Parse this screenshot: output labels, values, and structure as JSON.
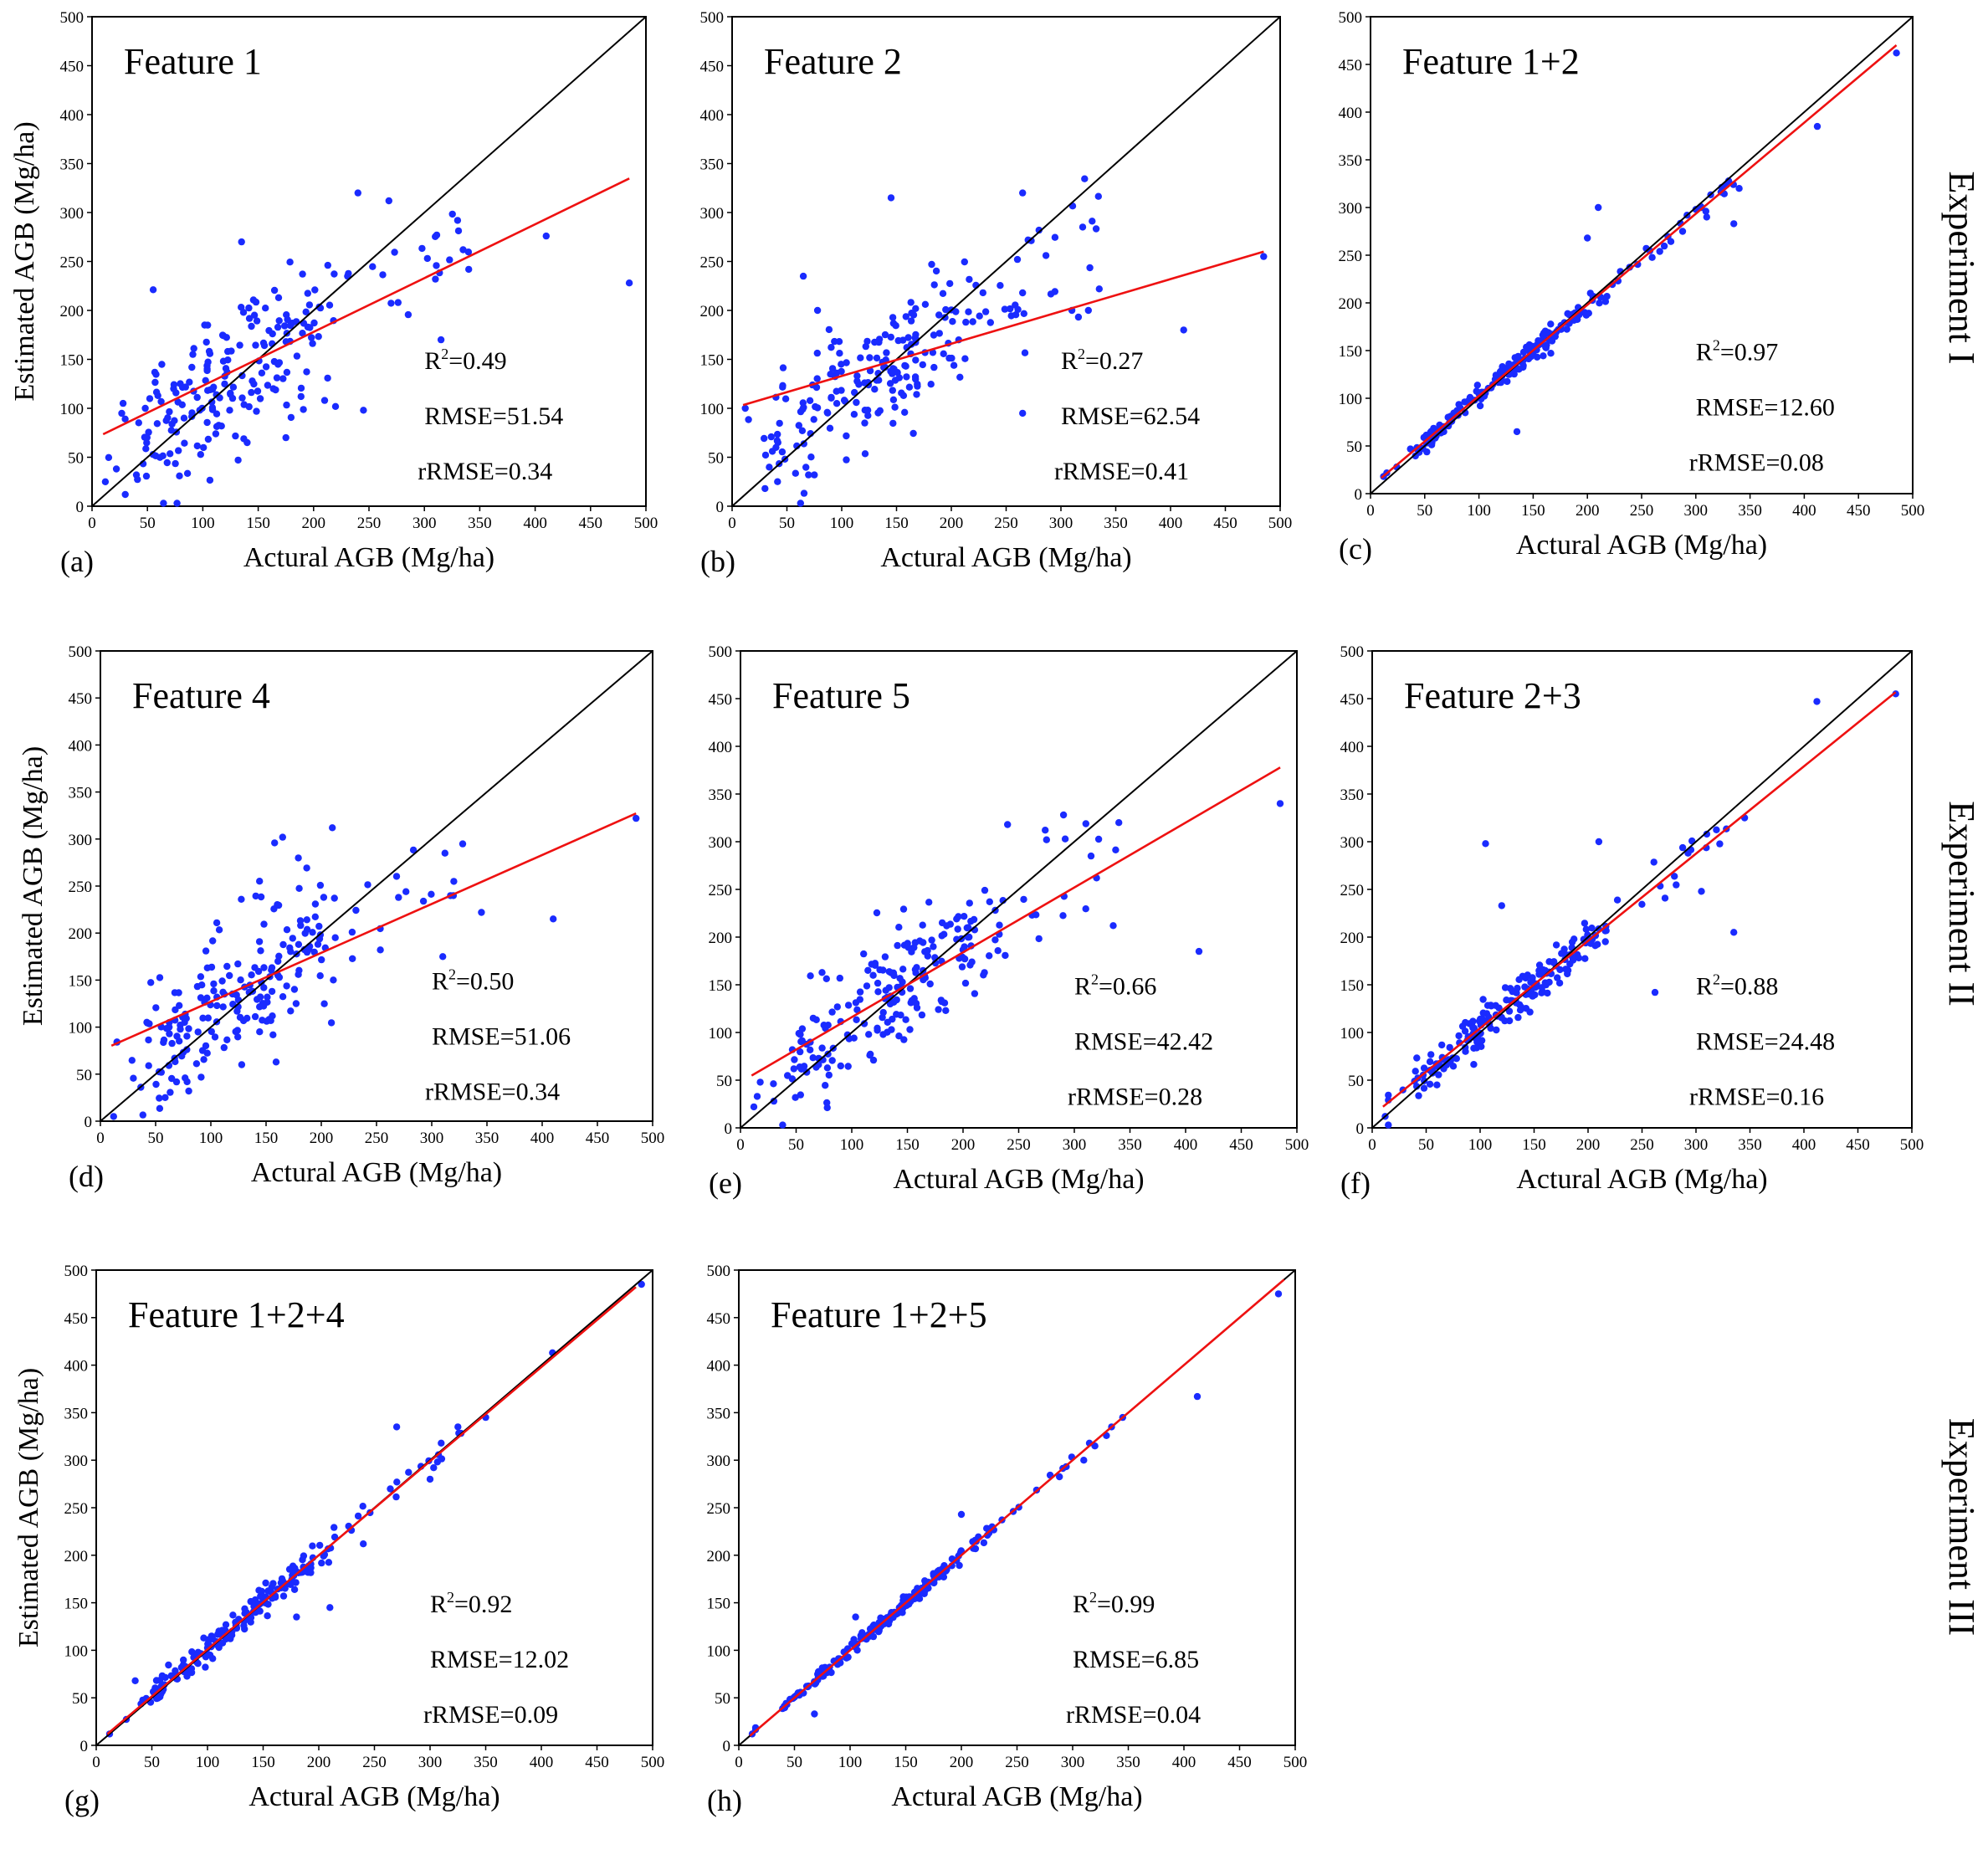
{
  "experiments": [
    "Experiment I",
    "Experiment II",
    "Experiment III"
  ],
  "colors": {
    "points": "#1a2bff",
    "fit_line": "#ee1111",
    "one_to_one_line": "#000000"
  },
  "axis_ticks": [
    "0",
    "50",
    "100",
    "150",
    "200",
    "250",
    "300",
    "350",
    "400",
    "450",
    "500"
  ],
  "chart_data": [
    {
      "id": "a",
      "letter": "(a)",
      "type": "scatter",
      "title": "Feature 1",
      "xlabel": "Actural AGB (Mg/ha)",
      "ylabel": "Estimated AGB (Mg/ha)",
      "xlim": [
        0,
        500
      ],
      "ylim": [
        0,
        500
      ],
      "fit": {
        "slope": 0.55,
        "intercept": 68,
        "x_range": [
          10,
          485
        ]
      },
      "r2_label": "R",
      "r2_value": "=0.49",
      "rmse": "RMSE=51.54",
      "rrmse": "rRMSE=0.34",
      "scatter_sd": 40,
      "n_points": 210,
      "seed": 11,
      "points": [
        [
          12,
          25
        ],
        [
          22,
          38
        ],
        [
          28,
          105
        ],
        [
          30,
          12
        ],
        [
          40,
          32
        ],
        [
          48,
          100
        ],
        [
          240,
          320
        ],
        [
          268,
          312
        ],
        [
          410,
          276
        ],
        [
          485,
          228
        ],
        [
          245,
          98
        ],
        [
          310,
          232
        ],
        [
          315,
          170
        ],
        [
          335,
          262
        ],
        [
          340,
          242
        ],
        [
          135,
          270
        ],
        [
          210,
          108
        ],
        [
          175,
          70
        ],
        [
          140,
          65
        ]
      ]
    },
    {
      "id": "b",
      "letter": "(b)",
      "type": "scatter",
      "title": "Feature 2",
      "xlabel": "Actural AGB (Mg/ha)",
      "ylabel": "Estimated AGB (Mg/ha)",
      "xlim": [
        0,
        500
      ],
      "ylim": [
        0,
        500
      ],
      "fit": {
        "slope": 0.33,
        "intercept": 100,
        "x_range": [
          10,
          485
        ]
      },
      "r2_label": "R",
      "r2_value": "=0.27",
      "rmse": "RMSE=62.54",
      "rrmse": "rRMSE=0.41",
      "scatter_sd": 38,
      "n_points": 210,
      "seed": 23,
      "points": [
        [
          12,
          100
        ],
        [
          30,
          18
        ],
        [
          65,
          235
        ],
        [
          145,
          315
        ],
        [
          265,
          320
        ],
        [
          270,
          272
        ],
        [
          280,
          282
        ],
        [
          265,
          95
        ],
        [
          310,
          200
        ],
        [
          325,
          200
        ],
        [
          335,
          222
        ],
        [
          412,
          180
        ],
        [
          485,
          255
        ],
        [
          75,
          32
        ],
        [
          40,
          60
        ]
      ]
    },
    {
      "id": "c",
      "letter": "(c)",
      "type": "scatter",
      "title": "Feature 1+2",
      "xlabel": "Actural AGB (Mg/ha)",
      "ylabel": "Estimated AGB (Mg/ha)",
      "xlim": [
        0,
        500
      ],
      "ylim": [
        0,
        500
      ],
      "fit": {
        "slope": 0.955,
        "intercept": 7,
        "x_range": [
          10,
          485
        ]
      },
      "r2_label": "R",
      "r2_value": "=0.97",
      "rmse": "RMSE=12.60",
      "rrmse": "rRMSE=0.08",
      "scatter_sd": 6,
      "n_points": 200,
      "seed": 37,
      "points": [
        [
          12,
          18
        ],
        [
          135,
          65
        ],
        [
          200,
          268
        ],
        [
          210,
          300
        ],
        [
          305,
          300
        ],
        [
          310,
          290
        ],
        [
          335,
          283
        ],
        [
          340,
          320
        ],
        [
          412,
          385
        ],
        [
          485,
          462
        ]
      ]
    },
    {
      "id": "d",
      "letter": "(d)",
      "type": "scatter",
      "title": "Feature 4",
      "xlabel": "Actural AGB (Mg/ha)",
      "ylabel": "Estimated AGB (Mg/ha)",
      "xlim": [
        0,
        500
      ],
      "ylim": [
        0,
        500
      ],
      "fit": {
        "slope": 0.52,
        "intercept": 75,
        "x_range": [
          10,
          485
        ]
      },
      "r2_label": "R",
      "r2_value": "=0.50",
      "rmse": "RMSE=51.06",
      "rrmse": "rRMSE=0.34",
      "scatter_sd": 38,
      "n_points": 210,
      "seed": 49,
      "points": [
        [
          12,
          5
        ],
        [
          165,
          302
        ],
        [
          210,
          312
        ],
        [
          485,
          322
        ],
        [
          410,
          215
        ],
        [
          312,
          285
        ],
        [
          320,
          255
        ],
        [
          345,
          222
        ],
        [
          310,
          175
        ],
        [
          80,
          32
        ]
      ]
    },
    {
      "id": "e",
      "letter": "(e)",
      "type": "scatter",
      "title": "Feature 5",
      "xlabel": "Actural AGB (Mg/ha)",
      "ylabel": "Estimated AGB (Mg/ha)",
      "xlim": [
        0,
        500
      ],
      "ylim": [
        0,
        500
      ],
      "fit": {
        "slope": 0.68,
        "intercept": 48,
        "x_range": [
          10,
          485
        ]
      },
      "r2_label": "R",
      "r2_value": "=0.66",
      "rmse": "RMSE=42.42",
      "rrmse": "rRMSE=0.28",
      "scatter_sd": 32,
      "n_points": 210,
      "seed": 61,
      "points": [
        [
          12,
          22
        ],
        [
          240,
          318
        ],
        [
          275,
          302
        ],
        [
          340,
          320
        ],
        [
          485,
          340
        ],
        [
          412,
          185
        ],
        [
          315,
          285
        ],
        [
          320,
          262
        ],
        [
          335,
          212
        ],
        [
          30,
          28
        ]
      ]
    },
    {
      "id": "f",
      "letter": "(f)",
      "type": "scatter",
      "title": "Feature 2+3",
      "xlabel": "Actural AGB (Mg/ha)",
      "ylabel": "Estimated AGB (Mg/ha)",
      "xlim": [
        0,
        500
      ],
      "ylim": [
        0,
        500
      ],
      "fit": {
        "slope": 0.915,
        "intercept": 13,
        "x_range": [
          10,
          485
        ]
      },
      "r2_label": "R",
      "r2_value": "=0.88",
      "rmse": "RMSE=24.48",
      "rrmse": "rRMSE=0.16",
      "scatter_sd": 11,
      "n_points": 200,
      "seed": 73,
      "points": [
        [
          12,
          12
        ],
        [
          105,
          298
        ],
        [
          120,
          233
        ],
        [
          210,
          300
        ],
        [
          262,
          142
        ],
        [
          335,
          205
        ],
        [
          305,
          248
        ],
        [
          310,
          308
        ],
        [
          345,
          325
        ],
        [
          412,
          447
        ],
        [
          485,
          455
        ],
        [
          60,
          45
        ]
      ]
    },
    {
      "id": "g",
      "letter": "(g)",
      "type": "scatter",
      "title": "Feature 1+2+4",
      "xlabel": "Actural AGB (Mg/ha)",
      "ylabel": "Estimated AGB (Mg/ha)",
      "xlim": [
        0,
        500
      ],
      "ylim": [
        0,
        500
      ],
      "fit": {
        "slope": 0.99,
        "intercept": 2,
        "x_range": [
          10,
          485
        ]
      },
      "r2_label": "R",
      "r2_value": "=0.92",
      "rmse": "RMSE=12.02",
      "rrmse": "rRMSE=0.09",
      "scatter_sd": 7,
      "n_points": 200,
      "seed": 89,
      "points": [
        [
          12,
          12
        ],
        [
          35,
          68
        ],
        [
          210,
          145
        ],
        [
          240,
          212
        ],
        [
          270,
          335
        ],
        [
          300,
          280
        ],
        [
          310,
          318
        ],
        [
          325,
          335
        ],
        [
          350,
          345
        ],
        [
          410,
          413
        ],
        [
          490,
          485
        ],
        [
          180,
          135
        ]
      ]
    },
    {
      "id": "h",
      "letter": "(h)",
      "type": "scatter",
      "title": "Feature 1+2+5",
      "xlabel": "Actural AGB (Mg/ha)",
      "ylabel": "Estimated AGB (Mg/ha)",
      "xlim": [
        0,
        500
      ],
      "ylim": [
        0,
        500
      ],
      "fit": {
        "slope": 1.0,
        "intercept": 0,
        "x_range": [
          10,
          490
        ]
      },
      "r2_label": "R",
      "r2_value": "=0.99",
      "rmse": "RMSE=6.85",
      "rrmse": "rRMSE=0.04",
      "scatter_sd": 3.5,
      "n_points": 200,
      "seed": 97,
      "points": [
        [
          12,
          12
        ],
        [
          68,
          33
        ],
        [
          200,
          243
        ],
        [
          310,
          300
        ],
        [
          315,
          318
        ],
        [
          320,
          315
        ],
        [
          335,
          335
        ],
        [
          345,
          345
        ],
        [
          412,
          367
        ],
        [
          485,
          475
        ],
        [
          105,
          135
        ]
      ]
    }
  ]
}
